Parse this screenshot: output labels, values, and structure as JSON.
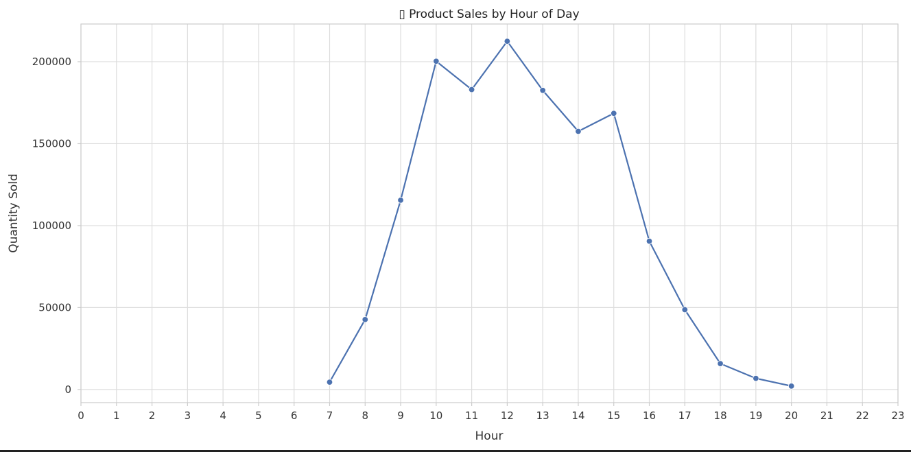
{
  "chart_data": {
    "type": "line",
    "title": "▯ Product Sales by Hour of Day",
    "xlabel": "Hour",
    "ylabel": "Quantity Sold",
    "xlim": [
      0,
      23
    ],
    "ylim": [
      -8000,
      223000
    ],
    "x_ticks": [
      0,
      1,
      2,
      3,
      4,
      5,
      6,
      7,
      8,
      9,
      10,
      11,
      12,
      13,
      14,
      15,
      16,
      17,
      18,
      19,
      20,
      21,
      22,
      23
    ],
    "y_ticks": [
      0,
      50000,
      100000,
      150000,
      200000
    ],
    "grid": true,
    "line_color": "#4c72b0",
    "grid_color": "#dddddd",
    "spine_color": "#cccccc",
    "series": [
      {
        "x": [
          7,
          8,
          9,
          10,
          11,
          12,
          13,
          14,
          15,
          16,
          17,
          18,
          19,
          20
        ],
        "values": [
          4500,
          42700,
          115500,
          200300,
          183000,
          212500,
          182500,
          157500,
          168500,
          90500,
          48700,
          15800,
          6800,
          2100
        ]
      }
    ]
  }
}
